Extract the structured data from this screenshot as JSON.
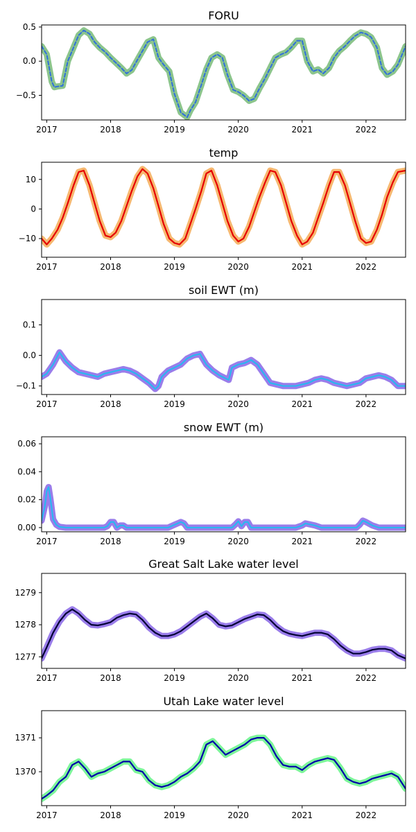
{
  "chart_data": [
    {
      "type": "line",
      "title": "FORU",
      "xlim": [
        2016.92,
        2022.62
      ],
      "ylim": [
        -0.86,
        0.53
      ],
      "xticks": [
        2017,
        2018,
        2019,
        2020,
        2021,
        2022
      ],
      "xtick_labels": [
        "2017",
        "2018",
        "2019",
        "2020",
        "2021",
        "2022"
      ],
      "yticks": [
        0.5,
        0.0,
        -0.5
      ],
      "ytick_labels": [
        "0.5",
        "0.0",
        "−0.5"
      ],
      "series": [
        {
          "style": {
            "color": "#2f6fdc",
            "halo": "#7fbf7f",
            "dash": true
          },
          "x": [
            2016.92,
            2017.0,
            2017.08,
            2017.12,
            2017.17,
            2017.25,
            2017.33,
            2017.42,
            2017.5,
            2017.58,
            2017.67,
            2017.75,
            2017.83,
            2017.92,
            2018.0,
            2018.08,
            2018.17,
            2018.25,
            2018.33,
            2018.42,
            2018.5,
            2018.58,
            2018.67,
            2018.75,
            2018.83,
            2018.92,
            2019.0,
            2019.1,
            2019.2,
            2019.25,
            2019.33,
            2019.42,
            2019.5,
            2019.58,
            2019.67,
            2019.75,
            2019.83,
            2019.92,
            2020.0,
            2020.08,
            2020.17,
            2020.25,
            2020.33,
            2020.42,
            2020.5,
            2020.58,
            2020.67,
            2020.75,
            2020.83,
            2020.92,
            2021.0,
            2021.08,
            2021.17,
            2021.25,
            2021.33,
            2021.42,
            2021.5,
            2021.58,
            2021.67,
            2021.75,
            2021.83,
            2021.92,
            2022.0,
            2022.08,
            2022.17,
            2022.25,
            2022.33,
            2022.42,
            2022.5,
            2022.62
          ],
          "y": [
            0.22,
            0.1,
            -0.3,
            -0.38,
            -0.37,
            -0.36,
            0.0,
            0.2,
            0.38,
            0.45,
            0.4,
            0.28,
            0.2,
            0.13,
            0.05,
            -0.02,
            -0.1,
            -0.18,
            -0.13,
            0.02,
            0.15,
            0.28,
            0.32,
            0.05,
            -0.05,
            -0.15,
            -0.48,
            -0.75,
            -0.82,
            -0.72,
            -0.6,
            -0.35,
            -0.12,
            0.05,
            0.1,
            0.05,
            -0.2,
            -0.42,
            -0.45,
            -0.5,
            -0.58,
            -0.55,
            -0.4,
            -0.25,
            -0.1,
            0.05,
            0.1,
            0.13,
            0.2,
            0.3,
            0.3,
            0.0,
            -0.15,
            -0.12,
            -0.18,
            -0.1,
            0.05,
            0.15,
            0.22,
            0.3,
            0.37,
            0.42,
            0.4,
            0.35,
            0.2,
            -0.1,
            -0.2,
            -0.15,
            -0.05,
            0.22
          ]
        }
      ]
    },
    {
      "type": "line",
      "title": "temp",
      "xlim": [
        2016.92,
        2022.62
      ],
      "ylim": [
        -16.3,
        15.8
      ],
      "xticks": [
        2017,
        2018,
        2019,
        2020,
        2021,
        2022
      ],
      "xtick_labels": [
        "2017",
        "2018",
        "2019",
        "2020",
        "2021",
        "2022"
      ],
      "yticks": [
        10,
        0,
        -10
      ],
      "ytick_labels": [
        "10",
        "0",
        "−10"
      ],
      "series": [
        {
          "style": {
            "color": "#e60000",
            "halo": "#f5b060"
          },
          "x": [
            2016.92,
            2017.0,
            2017.08,
            2017.17,
            2017.25,
            2017.33,
            2017.42,
            2017.5,
            2017.58,
            2017.67,
            2017.75,
            2017.83,
            2017.92,
            2018.0,
            2018.08,
            2018.17,
            2018.25,
            2018.33,
            2018.42,
            2018.5,
            2018.58,
            2018.67,
            2018.75,
            2018.83,
            2018.92,
            2019.0,
            2019.08,
            2019.17,
            2019.25,
            2019.33,
            2019.42,
            2019.5,
            2019.58,
            2019.67,
            2019.75,
            2019.83,
            2019.92,
            2020.0,
            2020.08,
            2020.17,
            2020.25,
            2020.33,
            2020.42,
            2020.5,
            2020.58,
            2020.67,
            2020.75,
            2020.83,
            2020.92,
            2021.0,
            2021.08,
            2021.17,
            2021.25,
            2021.33,
            2021.42,
            2021.5,
            2021.58,
            2021.67,
            2021.75,
            2021.83,
            2021.92,
            2022.0,
            2022.08,
            2022.17,
            2022.25,
            2022.33,
            2022.42,
            2022.5,
            2022.62
          ],
          "y": [
            -10,
            -12,
            -10,
            -7,
            -3,
            2,
            8,
            12.5,
            13,
            8,
            2,
            -4,
            -9,
            -9.5,
            -8,
            -4,
            1,
            6,
            11,
            13.5,
            12,
            7,
            1,
            -5,
            -10,
            -11.5,
            -12,
            -10,
            -5,
            0,
            6,
            12,
            13,
            8,
            2,
            -4,
            -9,
            -11,
            -10,
            -6,
            -1,
            4,
            9,
            13,
            12.5,
            8,
            2,
            -4,
            -9,
            -12,
            -11,
            -8,
            -3,
            2,
            8,
            12.5,
            12.5,
            8,
            2,
            -4,
            -10,
            -11.5,
            -11,
            -7,
            -2,
            4,
            9,
            12.5,
            13
          ]
        }
      ]
    },
    {
      "type": "line",
      "title": "soil EWT (m)",
      "xlim": [
        2016.92,
        2022.62
      ],
      "ylim": [
        -0.128,
        0.183
      ],
      "xticks": [
        2017,
        2018,
        2019,
        2020,
        2021,
        2022
      ],
      "xtick_labels": [
        "2017",
        "2018",
        "2019",
        "2020",
        "2021",
        "2022"
      ],
      "yticks": [
        0.1,
        0.0,
        -0.1
      ],
      "ytick_labels": [
        "0.1",
        "0.0",
        "−0.1"
      ],
      "series": [
        {
          "style": {
            "color": "#2ab7f0",
            "halo": "#8f6fe8"
          },
          "x": [
            2016.92,
            2017.0,
            2017.1,
            2017.2,
            2017.3,
            2017.4,
            2017.5,
            2017.6,
            2017.7,
            2017.8,
            2017.9,
            2018.0,
            2018.1,
            2018.2,
            2018.3,
            2018.4,
            2018.5,
            2018.6,
            2018.7,
            2018.75,
            2018.8,
            2018.9,
            2019.0,
            2019.1,
            2019.15,
            2019.2,
            2019.3,
            2019.4,
            2019.5,
            2019.6,
            2019.7,
            2019.8,
            2019.85,
            2019.9,
            2020.0,
            2020.1,
            2020.2,
            2020.3,
            2020.4,
            2020.5,
            2020.6,
            2020.7,
            2020.8,
            2020.9,
            2021.0,
            2021.1,
            2021.2,
            2021.3,
            2021.4,
            2021.5,
            2021.6,
            2021.7,
            2021.8,
            2021.9,
            2022.0,
            2022.1,
            2022.2,
            2022.3,
            2022.4,
            2022.5,
            2022.62
          ],
          "y": [
            -0.07,
            -0.06,
            -0.03,
            0.01,
            -0.02,
            -0.04,
            -0.055,
            -0.06,
            -0.065,
            -0.07,
            -0.06,
            -0.055,
            -0.05,
            -0.045,
            -0.05,
            -0.06,
            -0.075,
            -0.09,
            -0.11,
            -0.1,
            -0.07,
            -0.05,
            -0.04,
            -0.03,
            -0.02,
            -0.01,
            0.0,
            0.005,
            -0.03,
            -0.05,
            -0.065,
            -0.075,
            -0.08,
            -0.04,
            -0.03,
            -0.025,
            -0.015,
            -0.03,
            -0.06,
            -0.09,
            -0.095,
            -0.1,
            -0.1,
            -0.1,
            -0.095,
            -0.09,
            -0.08,
            -0.075,
            -0.08,
            -0.09,
            -0.095,
            -0.1,
            -0.095,
            -0.09,
            -0.075,
            -0.07,
            -0.065,
            -0.07,
            -0.08,
            -0.1,
            -0.1
          ]
        }
      ]
    },
    {
      "type": "line",
      "title": "snow EWT (m)",
      "xlim": [
        2016.92,
        2022.62
      ],
      "ylim": [
        -0.003,
        0.065
      ],
      "xticks": [
        2017,
        2018,
        2019,
        2020,
        2021,
        2022
      ],
      "xtick_labels": [
        "2017",
        "2018",
        "2019",
        "2020",
        "2021",
        "2022"
      ],
      "yticks": [
        0.06,
        0.04,
        0.02,
        0.0
      ],
      "ytick_labels": [
        "0.06",
        "0.04",
        "0.02",
        "0.00"
      ],
      "series": [
        {
          "style": {
            "color": "#2ab7f0",
            "halo": "#8f6fe8"
          },
          "x": [
            2016.92,
            2016.97,
            2017.0,
            2017.03,
            2017.06,
            2017.1,
            2017.15,
            2017.2,
            2017.3,
            2017.9,
            2017.95,
            2018.0,
            2018.05,
            2018.1,
            2018.15,
            2018.2,
            2018.25,
            2018.9,
            2019.0,
            2019.1,
            2019.15,
            2019.2,
            2019.9,
            2019.95,
            2020.0,
            2020.05,
            2020.1,
            2020.15,
            2020.2,
            2020.3,
            2020.9,
            2021.0,
            2021.05,
            2021.1,
            2021.2,
            2021.3,
            2021.85,
            2021.9,
            2021.95,
            2022.0,
            2022.1,
            2022.2,
            2022.62
          ],
          "y": [
            0.005,
            0.015,
            0.026,
            0.029,
            0.02,
            0.006,
            0.002,
            0.0005,
            0.0,
            0.0,
            0.001,
            0.004,
            0.004,
            0.0,
            0.0015,
            0.0015,
            0.0,
            0.0,
            0.002,
            0.004,
            0.003,
            0.0,
            0.0,
            0.002,
            0.0045,
            0.001,
            0.004,
            0.004,
            0.0,
            0.0,
            0.0,
            0.0015,
            0.003,
            0.0025,
            0.0015,
            0.0,
            0.0,
            0.002,
            0.005,
            0.004,
            0.0015,
            0.0,
            0.0
          ]
        }
      ]
    },
    {
      "type": "line",
      "title": "Great Salt Lake water level",
      "xlim": [
        2016.92,
        2022.62
      ],
      "ylim": [
        1276.64,
        1279.6
      ],
      "xticks": [
        2017,
        2018,
        2019,
        2020,
        2021,
        2022
      ],
      "xtick_labels": [
        "2017",
        "2018",
        "2019",
        "2020",
        "2021",
        "2022"
      ],
      "yticks": [
        1279,
        1278,
        1277
      ],
      "ytick_labels": [
        "1279",
        "1278",
        "1277"
      ],
      "series": [
        {
          "style": {
            "color": "#000033",
            "halo": "#8f6fe8"
          },
          "x": [
            2016.92,
            2017.0,
            2017.1,
            2017.2,
            2017.3,
            2017.4,
            2017.5,
            2017.6,
            2017.7,
            2017.8,
            2017.9,
            2018.0,
            2018.1,
            2018.2,
            2018.3,
            2018.4,
            2018.5,
            2018.6,
            2018.7,
            2018.8,
            2018.9,
            2019.0,
            2019.1,
            2019.2,
            2019.3,
            2019.4,
            2019.5,
            2019.6,
            2019.7,
            2019.8,
            2019.9,
            2020.0,
            2020.1,
            2020.2,
            2020.3,
            2020.4,
            2020.5,
            2020.6,
            2020.7,
            2020.8,
            2020.9,
            2021.0,
            2021.1,
            2021.2,
            2021.3,
            2021.4,
            2021.5,
            2021.6,
            2021.7,
            2021.8,
            2021.9,
            2022.0,
            2022.1,
            2022.2,
            2022.3,
            2022.4,
            2022.5,
            2022.62
          ],
          "y": [
            1276.95,
            1277.3,
            1277.75,
            1278.1,
            1278.35,
            1278.48,
            1278.35,
            1278.15,
            1278.0,
            1277.98,
            1278.02,
            1278.08,
            1278.22,
            1278.3,
            1278.35,
            1278.32,
            1278.15,
            1277.92,
            1277.75,
            1277.65,
            1277.65,
            1277.7,
            1277.8,
            1277.95,
            1278.1,
            1278.25,
            1278.35,
            1278.2,
            1278.0,
            1277.95,
            1277.98,
            1278.08,
            1278.18,
            1278.25,
            1278.32,
            1278.3,
            1278.15,
            1277.95,
            1277.8,
            1277.72,
            1277.68,
            1277.65,
            1277.7,
            1277.75,
            1277.75,
            1277.7,
            1277.55,
            1277.35,
            1277.2,
            1277.1,
            1277.1,
            1277.15,
            1277.22,
            1277.25,
            1277.25,
            1277.2,
            1277.05,
            1276.95
          ]
        }
      ]
    },
    {
      "type": "line",
      "title": "Utah Lake water level",
      "xlim": [
        2016.92,
        2022.62
      ],
      "ylim": [
        1369.0,
        1371.8
      ],
      "xticks": [
        2017,
        2018,
        2019,
        2020,
        2021,
        2022
      ],
      "xtick_labels": [
        "2017",
        "2018",
        "2019",
        "2020",
        "2021",
        "2022"
      ],
      "yticks": [
        1371,
        1370
      ],
      "ytick_labels": [
        "1371",
        "1370"
      ],
      "series": [
        {
          "style": {
            "color": "#0000aa",
            "halo": "#6ff58f"
          },
          "x": [
            2016.92,
            2017.0,
            2017.1,
            2017.2,
            2017.3,
            2017.4,
            2017.5,
            2017.6,
            2017.7,
            2017.8,
            2017.9,
            2018.0,
            2018.1,
            2018.2,
            2018.3,
            2018.4,
            2018.5,
            2018.6,
            2018.7,
            2018.8,
            2018.9,
            2019.0,
            2019.1,
            2019.2,
            2019.3,
            2019.4,
            2019.5,
            2019.6,
            2019.7,
            2019.8,
            2019.9,
            2020.0,
            2020.1,
            2020.2,
            2020.3,
            2020.4,
            2020.5,
            2020.6,
            2020.7,
            2020.8,
            2020.9,
            2021.0,
            2021.1,
            2021.2,
            2021.3,
            2021.4,
            2021.5,
            2021.6,
            2021.7,
            2021.8,
            2021.9,
            2022.0,
            2022.1,
            2022.2,
            2022.3,
            2022.4,
            2022.5,
            2022.62
          ],
          "y": [
            1369.2,
            1369.3,
            1369.45,
            1369.7,
            1369.85,
            1370.2,
            1370.3,
            1370.1,
            1369.85,
            1369.95,
            1370.0,
            1370.1,
            1370.2,
            1370.3,
            1370.3,
            1370.05,
            1370.0,
            1369.75,
            1369.6,
            1369.55,
            1369.6,
            1369.7,
            1369.85,
            1369.95,
            1370.1,
            1370.3,
            1370.8,
            1370.9,
            1370.7,
            1370.5,
            1370.6,
            1370.7,
            1370.8,
            1370.95,
            1371.0,
            1371.0,
            1370.8,
            1370.45,
            1370.2,
            1370.15,
            1370.15,
            1370.05,
            1370.2,
            1370.3,
            1370.35,
            1370.4,
            1370.35,
            1370.1,
            1369.8,
            1369.7,
            1369.65,
            1369.7,
            1369.8,
            1369.85,
            1369.9,
            1369.95,
            1369.85,
            1369.5
          ]
        }
      ]
    }
  ]
}
